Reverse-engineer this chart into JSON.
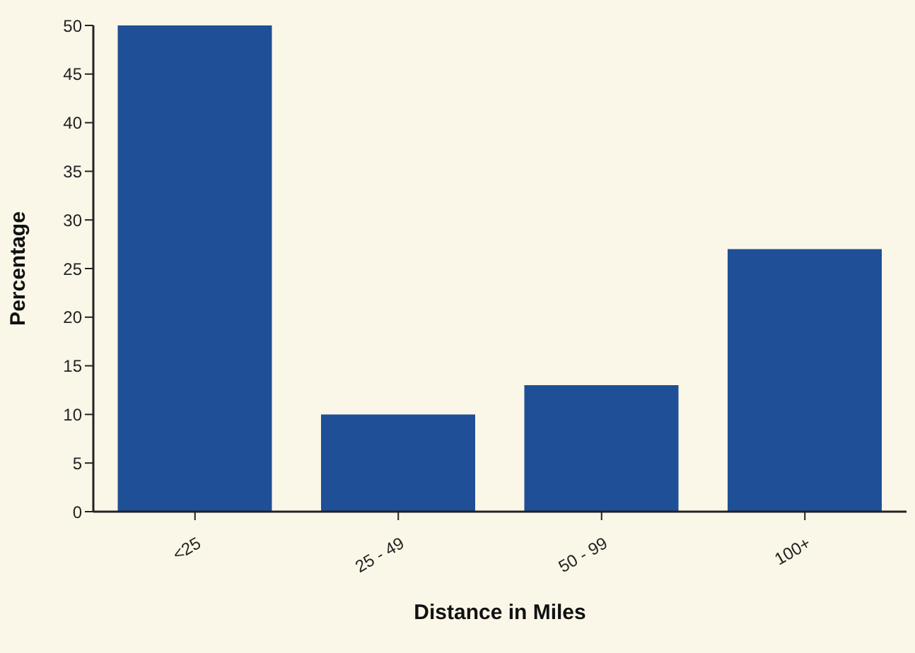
{
  "chart_data": {
    "type": "bar",
    "xlabel": "Distance in Miles",
    "ylabel": "Percentage",
    "categories": [
      "<25",
      "25 - 49",
      "50 - 99",
      "100+"
    ],
    "values": [
      50,
      10,
      13,
      27
    ],
    "color": "#1f4f96",
    "ylim": [
      0,
      50
    ],
    "yticks": [
      0,
      5,
      10,
      15,
      20,
      25,
      30,
      35,
      40,
      45,
      50
    ],
    "grid": false,
    "legend": false
  }
}
